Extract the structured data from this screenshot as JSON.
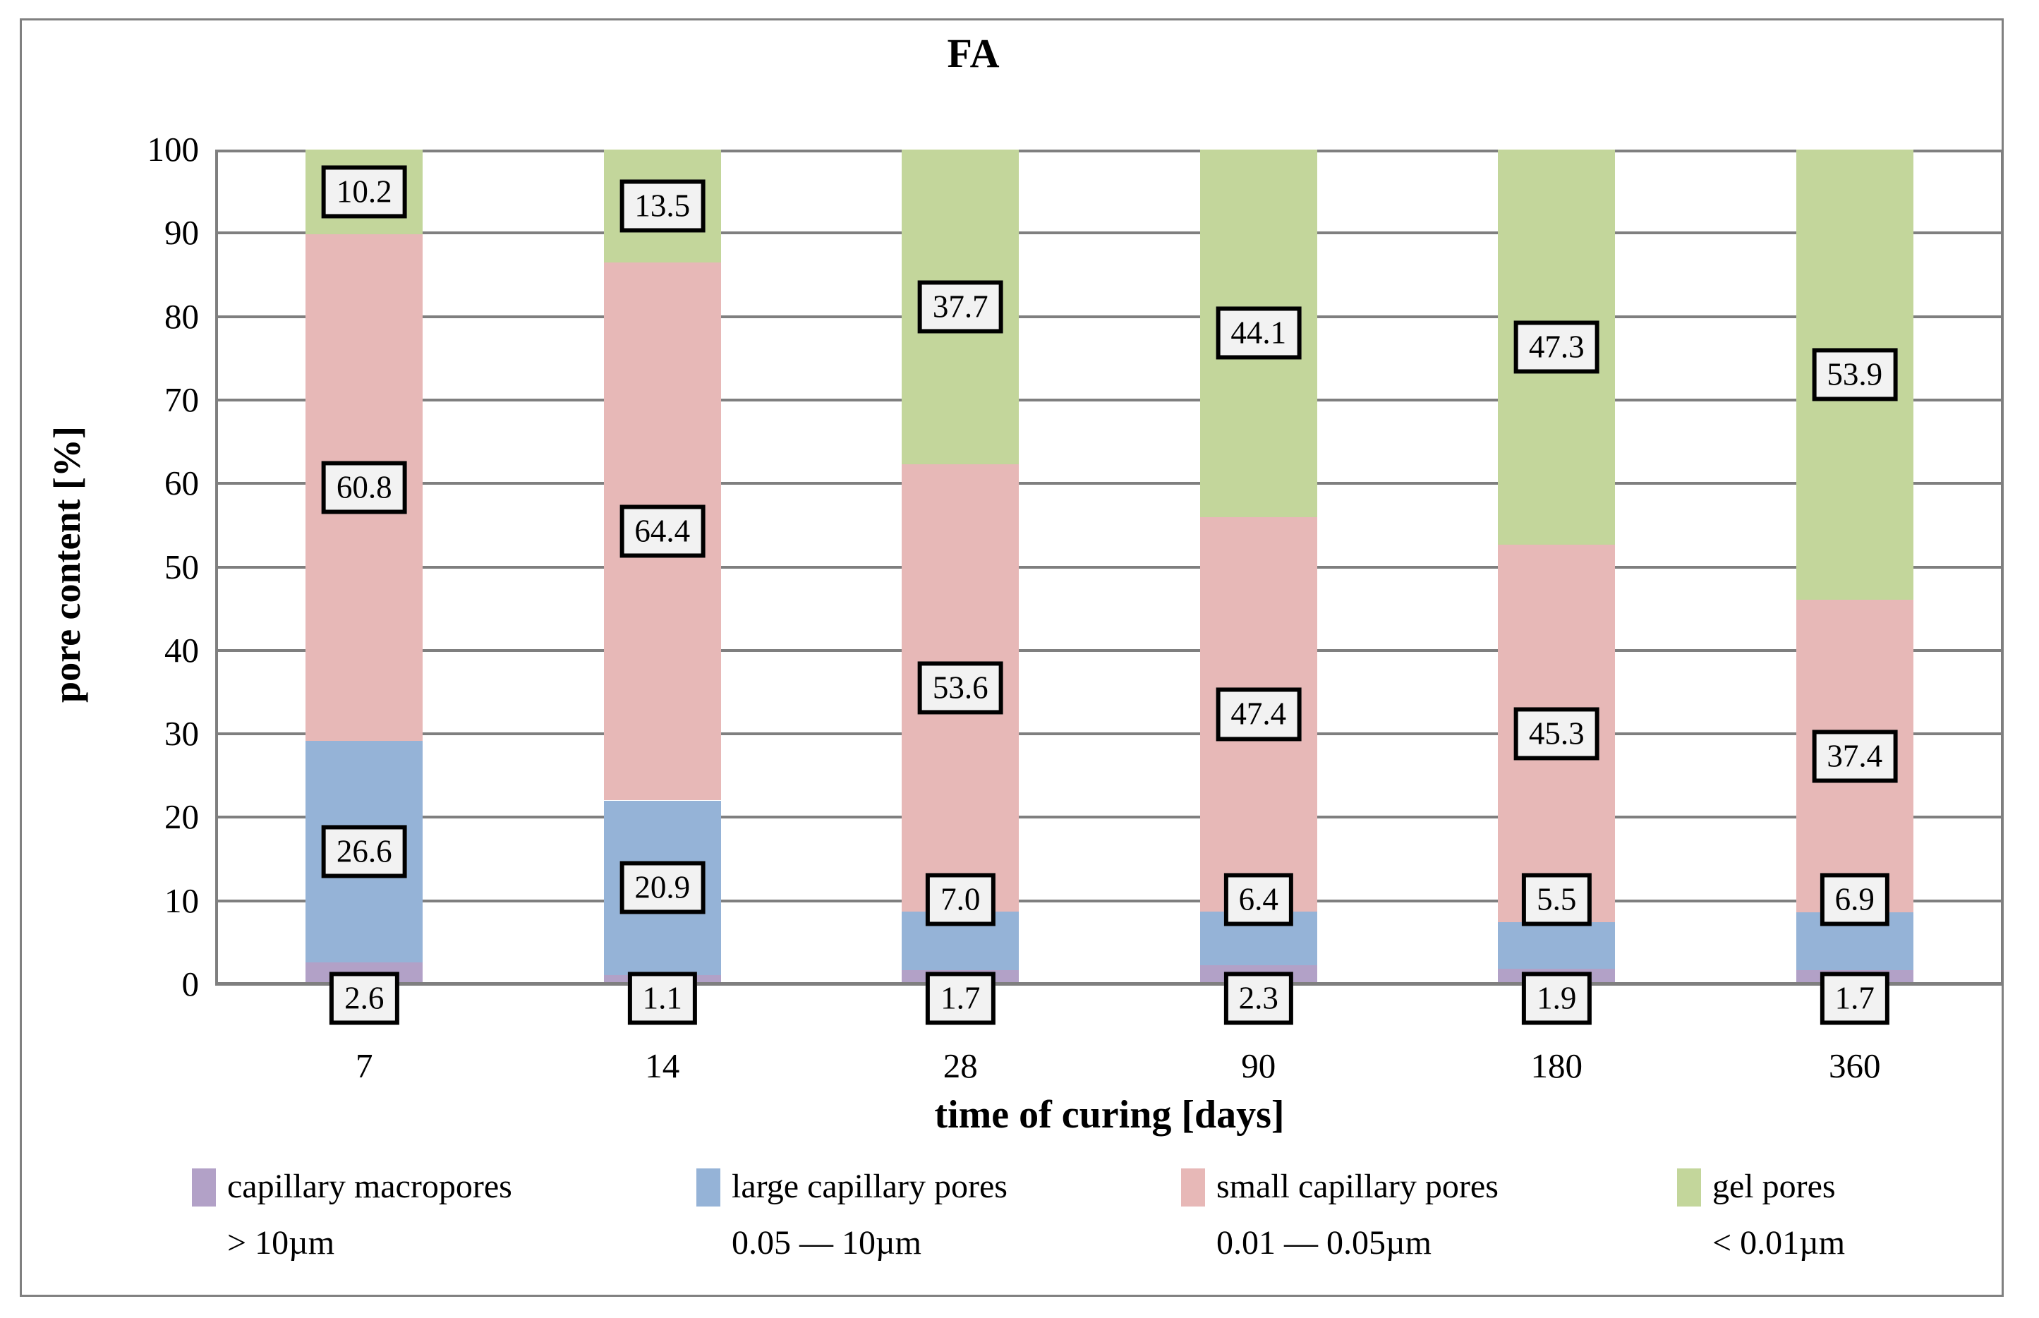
{
  "chart": {
    "title": "FA",
    "y_axis_title": "pore content [%]",
    "x_axis_title": "time of curing [days]"
  },
  "chart_data": {
    "type": "bar",
    "stacked": true,
    "title": "FA",
    "xlabel": "time of curing [days]",
    "ylabel": "pore content [%]",
    "ylim": [
      0,
      100
    ],
    "ytick_step": 10,
    "grid": true,
    "legend_position": "bottom",
    "categories": [
      "7",
      "14",
      "28",
      "90",
      "180",
      "360"
    ],
    "series": [
      {
        "name": "capillary macropores > 10µm",
        "color": "#B2A1C7",
        "values": [
          2.6,
          1.1,
          1.7,
          2.3,
          1.9,
          1.7
        ]
      },
      {
        "name": "large capillary pores 0.05 — 10µm",
        "color": "#95B3D7",
        "values": [
          26.6,
          20.9,
          7.0,
          6.4,
          5.5,
          6.9
        ]
      },
      {
        "name": "small capillary pores 0.01 — 0.05µm",
        "color": "#E7B8B7",
        "values": [
          60.8,
          64.4,
          53.6,
          47.4,
          45.3,
          37.4
        ]
      },
      {
        "name": "gel pores < 0.01µm",
        "color": "#C3D69B",
        "values": [
          10.2,
          13.5,
          37.7,
          44.1,
          47.3,
          53.9
        ]
      }
    ],
    "data_labels_visible": true
  },
  "y_tick_labels": [
    "0",
    "10",
    "20",
    "30",
    "40",
    "50",
    "60",
    "70",
    "80",
    "90",
    "100"
  ],
  "legend": {
    "items": [
      {
        "line1": "capillary macropores",
        "line2": "> 10µm",
        "color": "#B2A1C7"
      },
      {
        "line1": "large capillary pores",
        "line2": "0.05 — 10µm",
        "color": "#95B3D7"
      },
      {
        "line1": "small capillary pores",
        "line2": "0.01 — 0.05µm",
        "color": "#E7B8B7"
      },
      {
        "line1": "gel pores",
        "line2": "< 0.01µm",
        "color": "#C3D69B"
      }
    ]
  },
  "colors": {
    "background": "#FFFFFF",
    "outer_border": "#808080",
    "gridline": "#7F7F7F",
    "plot_border": "#7F7F7F",
    "axis_line": "#595959",
    "label_box_bg": "#F2F2F2",
    "label_box_border": "#000000",
    "text": "#000000"
  }
}
